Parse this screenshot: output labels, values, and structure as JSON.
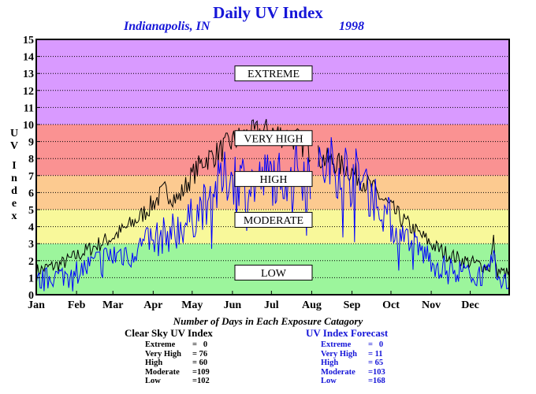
{
  "header": {
    "title": "Daily UV Index",
    "location": "Indianapolis, IN",
    "year": "1998"
  },
  "colors": {
    "background": "#ffffff",
    "title_text": "#1515d8",
    "clear_sky_line": "#000000",
    "forecast_line": "#0000ff",
    "band_low": "#9cf59c",
    "band_moderate": "#f8f89a",
    "band_high": "#fcca90",
    "band_very_high": "#fa9292",
    "band_extreme": "#d99aff"
  },
  "chart_data": {
    "type": "line",
    "title": "Daily UV Index",
    "ylabel": "UV Index",
    "ylabel_letters": [
      "U",
      "V",
      "I",
      "n",
      "d",
      "e",
      "x"
    ],
    "ylim": [
      0,
      15
    ],
    "yticks": [
      0,
      1,
      2,
      3,
      4,
      5,
      6,
      7,
      8,
      9,
      10,
      11,
      12,
      13,
      14,
      15
    ],
    "xlim": [
      1,
      365
    ],
    "grid": true,
    "month_labels": [
      "Jan",
      "Feb",
      "Mar",
      "Apr",
      "May",
      "Jun",
      "Jul",
      "Aug",
      "Sep",
      "Oct",
      "Nov",
      "Dec"
    ],
    "month_start_days": [
      1,
      32,
      60,
      91,
      121,
      152,
      182,
      213,
      244,
      274,
      305,
      335
    ],
    "bands": [
      {
        "label": "LOW",
        "range": [
          0,
          3
        ],
        "color": "#9cf59c"
      },
      {
        "label": "MODERATE",
        "range": [
          3,
          5
        ],
        "color": "#f8f89a"
      },
      {
        "label": "HIGH",
        "range": [
          5,
          7
        ],
        "color": "#fcca90"
      },
      {
        "label": "VERY HIGH",
        "range": [
          7,
          10
        ],
        "color": "#fa9292"
      },
      {
        "label": "EXTREME",
        "range": [
          10,
          15
        ],
        "color": "#d99aff"
      }
    ],
    "band_label_values": {
      "EXTREME": 13,
      "VERY HIGH": 9.2,
      "HIGH": 6.8,
      "MODERATE": 4.4,
      "LOW": 1.3
    },
    "series": [
      {
        "color": "#000000",
        "day": [
          1,
          10,
          20,
          30,
          40,
          50,
          60,
          70,
          80,
          90,
          100,
          110,
          120,
          130,
          140,
          150,
          160,
          170,
          180,
          190,
          200,
          210,
          216,
          220,
          230,
          240,
          250,
          260,
          270,
          280,
          290,
          300,
          310,
          320,
          330,
          340,
          350,
          353,
          355,
          360,
          365
        ],
        "uv": [
          1.4,
          1.6,
          1.8,
          2.2,
          2.6,
          3.0,
          3.4,
          3.9,
          4.5,
          5.3,
          6.1,
          5.6,
          6.9,
          7.9,
          8.3,
          8.9,
          9.3,
          9.5,
          9.6,
          9.4,
          9.2,
          8.6,
          8.2,
          8.0,
          7.8,
          7.4,
          6.9,
          6.2,
          5.4,
          4.6,
          3.9,
          3.3,
          2.7,
          2.3,
          2.0,
          1.8,
          1.6,
          3.2,
          1.4,
          1.3,
          1.2
        ]
      },
      {
        "color": "#0000ff",
        "day": [
          1,
          10,
          20,
          30,
          40,
          50,
          60,
          70,
          80,
          90,
          100,
          110,
          120,
          130,
          140,
          150,
          160,
          170,
          180,
          190,
          200,
          210,
          216,
          220,
          230,
          240,
          250,
          260,
          270,
          280,
          290,
          300,
          310,
          320,
          330,
          340,
          350,
          353,
          355,
          360,
          365
        ],
        "uv": [
          0.7,
          1.0,
          1.1,
          1.3,
          1.6,
          2.0,
          2.3,
          2.5,
          2.8,
          3.1,
          3.5,
          3.9,
          4.4,
          5.3,
          6.2,
          7.1,
          6.8,
          6.5,
          6.9,
          7.1,
          7.3,
          7.4,
          6.8,
          7.3,
          7.6,
          7.3,
          6.8,
          5.9,
          4.8,
          3.4,
          2.9,
          2.4,
          1.7,
          1.5,
          1.3,
          1.2,
          1.1,
          2.6,
          0.9,
          0.8,
          0.6
        ]
      }
    ]
  },
  "stats": {
    "caption": "Number of Days in Each Exposure Catagory",
    "clear_sky": {
      "heading": "Clear Sky UV Index",
      "rows": [
        {
          "label": "Extreme",
          "value": "=   0"
        },
        {
          "label": "Very High",
          "value": "= 76"
        },
        {
          "label": "High",
          "value": "= 60"
        },
        {
          "label": "Moderate",
          "value": "=109"
        },
        {
          "label": "Low",
          "value": "=102"
        }
      ]
    },
    "forecast": {
      "heading": "UV Index Forecast",
      "rows": [
        {
          "label": "Extreme",
          "value": "=   0"
        },
        {
          "label": "Very High",
          "value": "= 11"
        },
        {
          "label": "High",
          "value": "= 65"
        },
        {
          "label": "Moderate",
          "value": "=103"
        },
        {
          "label": "Low",
          "value": "=168"
        }
      ]
    }
  }
}
